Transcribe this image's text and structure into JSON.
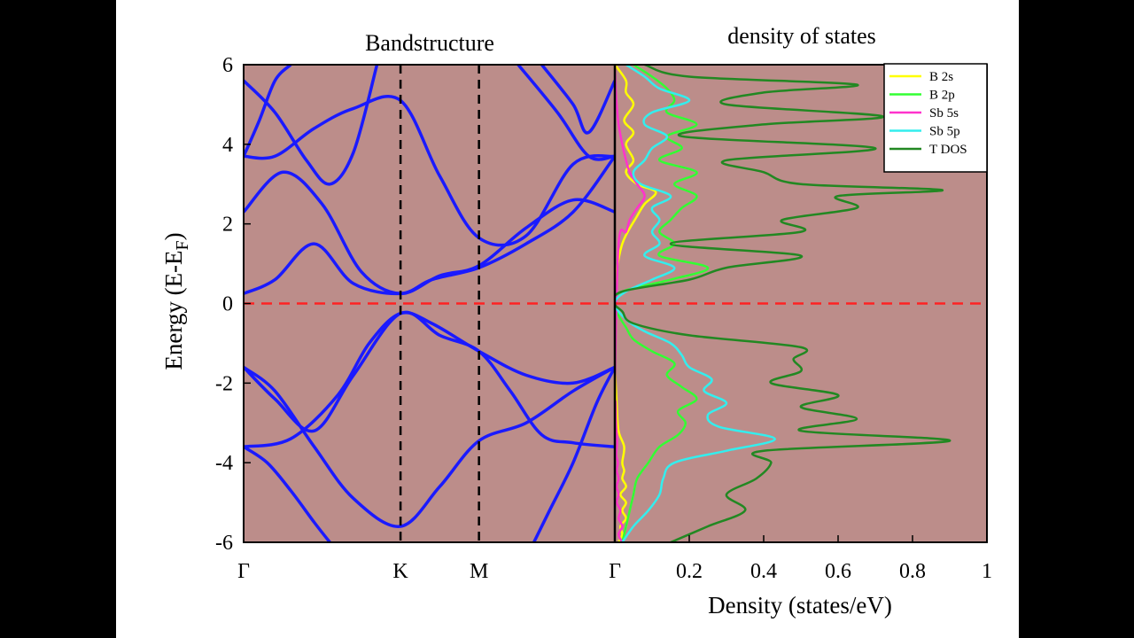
{
  "chart_data": [
    {
      "type": "line",
      "title": "Bandstructure",
      "ylabel": "Energy (E-E",
      "ylabel_sub": "F",
      "ylabel_close": ")",
      "ylim": [
        -6,
        6
      ],
      "yticks": [
        "6",
        "4",
        "2",
        "0",
        "-2",
        "-4",
        "-6"
      ],
      "ytick_values": [
        6,
        4,
        2,
        0,
        -2,
        -4,
        -6
      ],
      "kpoints": [
        {
          "label": "Γ",
          "x": 0
        },
        {
          "label": "K",
          "x": 1
        },
        {
          "label": "M",
          "x": 1.5
        },
        {
          "label": "Γ",
          "x": 2.366
        }
      ],
      "fermi_level": 0,
      "grid": false,
      "series": [
        {
          "x": [
            0,
            0.2,
            0.45,
            0.7,
            1,
            1.25,
            1.5,
            1.8,
            2.1,
            2.366
          ],
          "y": [
            -1.6,
            -2.2,
            -3.6,
            -4.9,
            -5.6,
            -4.6,
            -3.45,
            -3.0,
            -2.2,
            -1.6
          ]
        },
        {
          "x": [
            0,
            0.2,
            0.45,
            0.7,
            1,
            1.25,
            1.5,
            1.7,
            1.9,
            2.1,
            2.366
          ],
          "y": [
            -1.6,
            -2.4,
            -3.2,
            -1.8,
            -0.25,
            -0.8,
            -1.2,
            -2.2,
            -3.3,
            -3.5,
            -3.6
          ]
        },
        {
          "x": [
            0,
            0.3,
            0.6,
            0.8,
            1,
            1.2,
            1.5,
            1.8,
            2.1,
            2.366
          ],
          "y": [
            -3.6,
            -3.4,
            -2.3,
            -1.0,
            -0.25,
            -0.5,
            -1.2,
            -1.8,
            -2.0,
            -1.6
          ]
        },
        {
          "x": [
            0,
            0.15,
            0.3,
            0.45,
            0.55
          ],
          "y": [
            -3.6,
            -4.0,
            -4.7,
            -5.5,
            -6
          ]
        },
        {
          "x": [
            1.85,
            1.95,
            2.1,
            2.25,
            2.366
          ],
          "y": [
            -6,
            -5.2,
            -4.0,
            -2.5,
            -1.6
          ]
        },
        {
          "x": [
            0,
            0.2,
            0.45,
            0.7,
            1,
            1.2,
            1.5,
            1.8,
            2.1,
            2.366
          ],
          "y": [
            0.25,
            0.6,
            1.5,
            0.5,
            0.25,
            0.6,
            0.9,
            1.5,
            2.3,
            3.7
          ]
        },
        {
          "x": [
            0,
            0.25,
            0.5,
            0.75,
            1,
            1.25,
            1.5,
            1.8,
            2.1,
            2.366
          ],
          "y": [
            2.3,
            3.3,
            2.5,
            0.8,
            0.25,
            0.7,
            0.95,
            1.9,
            2.6,
            2.3
          ]
        },
        {
          "x": [
            0,
            0.2,
            0.45,
            0.7,
            1,
            1.25,
            1.5,
            1.8,
            2.1,
            2.366
          ],
          "y": [
            3.7,
            3.7,
            4.4,
            4.9,
            5.1,
            3.2,
            1.65,
            1.7,
            3.5,
            3.7
          ]
        },
        {
          "x": [
            0,
            0.2,
            0.4,
            0.55,
            0.7,
            0.85
          ],
          "y": [
            5.6,
            4.8,
            3.6,
            3.0,
            3.8,
            6
          ]
        },
        {
          "x": [
            0,
            0.1,
            0.2,
            0.3
          ],
          "y": [
            3.7,
            4.6,
            5.6,
            6
          ]
        },
        {
          "x": [
            1.9,
            2.1,
            2.2,
            2.366
          ],
          "y": [
            6,
            5.0,
            4.3,
            5.6
          ]
        },
        {
          "x": [
            1.75,
            2.0,
            2.2,
            2.366
          ],
          "y": [
            6,
            4.8,
            3.7,
            3.7
          ]
        }
      ]
    },
    {
      "type": "line",
      "title": "density of states",
      "xlabel": "Density (states/eV)",
      "xlim": [
        0,
        1
      ],
      "xticks": [
        "0.2",
        "0.4",
        "0.6",
        "0.8",
        "1"
      ],
      "xtick_values": [
        0.2,
        0.4,
        0.6,
        0.8,
        1
      ],
      "ylim": [
        -6,
        6
      ],
      "legend_position": "top-right",
      "grid": false,
      "series": [
        {
          "name": "B 2s",
          "color": "#ffff00",
          "energy": [
            -6,
            -5.8,
            -5.6,
            -5.4,
            -5.2,
            -5.0,
            -4.8,
            -4.6,
            -4.4,
            -4.2,
            -4.0,
            -3.6,
            -3.2,
            -2.5,
            -1.5,
            -0.5,
            0,
            0.5,
            1.5,
            2.2,
            2.5,
            2.8,
            3.0,
            3.3,
            3.6,
            4.0,
            4.3,
            4.6,
            5.0,
            5.3,
            5.6,
            6
          ],
          "density": [
            0.01,
            0.02,
            0.015,
            0.03,
            0.02,
            0.03,
            0.015,
            0.03,
            0.02,
            0.025,
            0.02,
            0.025,
            0.01,
            0.005,
            0.0,
            0.0,
            0.0,
            0.0,
            0.02,
            0.06,
            0.08,
            0.11,
            0.06,
            0.03,
            0.05,
            0.03,
            0.05,
            0.025,
            0.05,
            0.03,
            0.03,
            0.0
          ]
        },
        {
          "name": "B 2p",
          "color": "#33ff33",
          "energy": [
            -6,
            -5.6,
            -5.2,
            -4.8,
            -4.4,
            -4.0,
            -3.6,
            -3.3,
            -3.0,
            -2.7,
            -2.4,
            -2.1,
            -1.8,
            -1.5,
            -1.2,
            -0.9,
            -0.6,
            -0.3,
            0,
            0.3,
            0.6,
            0.9,
            1.2,
            1.5,
            1.8,
            2.1,
            2.4,
            2.7,
            3.0,
            3.3,
            3.6,
            3.9,
            4.2,
            4.5,
            4.8,
            5.1,
            5.4,
            5.7,
            6
          ],
          "density": [
            0.02,
            0.03,
            0.04,
            0.05,
            0.06,
            0.09,
            0.12,
            0.17,
            0.19,
            0.17,
            0.22,
            0.18,
            0.14,
            0.16,
            0.1,
            0.05,
            0.03,
            0.01,
            0.0,
            0.02,
            0.15,
            0.25,
            0.12,
            0.16,
            0.12,
            0.15,
            0.18,
            0.22,
            0.16,
            0.22,
            0.12,
            0.18,
            0.14,
            0.22,
            0.14,
            0.16,
            0.14,
            0.1,
            0.05
          ]
        },
        {
          "name": "Sb 5s",
          "color": "#ff33cc",
          "energy": [
            -6,
            -5.8,
            -5.6,
            -5.4,
            -5.2,
            -5.0,
            -4.8,
            -4.6,
            -4.4,
            -4.2,
            -4.0,
            -3.8,
            -3.5,
            -3.0,
            -2.5,
            -2.0,
            1.5,
            1.8,
            2.1,
            2.4,
            2.7,
            3.0,
            3.3,
            3.6,
            4.0,
            4.5,
            5.0,
            5.5,
            6
          ],
          "density": [
            0.02,
            0.01,
            0.02,
            0.01,
            0.015,
            0.005,
            0.01,
            0.005,
            0.01,
            0.005,
            0.008,
            0.004,
            0.006,
            0.003,
            0.002,
            0.0,
            0.01,
            0.03,
            0.04,
            0.06,
            0.08,
            0.06,
            0.04,
            0.03,
            0.02,
            0.01,
            0.005,
            0.002,
            0.0
          ]
        },
        {
          "name": "Sb 5p",
          "color": "#33eeee",
          "energy": [
            -6,
            -5.6,
            -5.2,
            -4.8,
            -4.4,
            -4.0,
            -3.7,
            -3.4,
            -3.1,
            -2.8,
            -2.5,
            -2.2,
            -1.9,
            -1.6,
            -1.3,
            -1.0,
            -0.7,
            -0.4,
            0,
            0.3,
            0.6,
            0.9,
            1.2,
            1.5,
            1.8,
            2.1,
            2.4,
            2.7,
            3.0,
            3.3,
            3.6,
            3.9,
            4.2,
            4.5,
            4.8,
            5.1,
            5.4,
            5.7,
            6
          ],
          "density": [
            0.02,
            0.05,
            0.09,
            0.12,
            0.13,
            0.16,
            0.3,
            0.43,
            0.28,
            0.25,
            0.3,
            0.24,
            0.26,
            0.2,
            0.18,
            0.15,
            0.08,
            0.03,
            0.0,
            0.03,
            0.1,
            0.16,
            0.08,
            0.12,
            0.1,
            0.12,
            0.1,
            0.15,
            0.07,
            0.05,
            0.08,
            0.1,
            0.14,
            0.08,
            0.1,
            0.2,
            0.12,
            0.08,
            0.03
          ]
        },
        {
          "name": "T DOS",
          "color": "#228822",
          "energy": [
            -6,
            -5.6,
            -5.2,
            -4.8,
            -4.4,
            -4.0,
            -3.7,
            -3.45,
            -3.2,
            -2.9,
            -2.6,
            -2.3,
            -2.0,
            -1.7,
            -1.4,
            -1.1,
            -0.8,
            -0.5,
            -0.2,
            0,
            0.3,
            0.6,
            0.9,
            1.2,
            1.5,
            1.8,
            2.1,
            2.4,
            2.7,
            2.85,
            3.0,
            3.3,
            3.6,
            3.9,
            4.2,
            4.5,
            4.7,
            5.0,
            5.3,
            5.5,
            5.7,
            6
          ],
          "density": [
            0.15,
            0.25,
            0.35,
            0.3,
            0.38,
            0.42,
            0.4,
            0.9,
            0.5,
            0.65,
            0.5,
            0.6,
            0.42,
            0.5,
            0.48,
            0.5,
            0.2,
            0.05,
            0.02,
            0.0,
            0.02,
            0.2,
            0.3,
            0.5,
            0.15,
            0.5,
            0.45,
            0.65,
            0.6,
            0.88,
            0.5,
            0.4,
            0.3,
            0.7,
            0.18,
            0.4,
            0.72,
            0.3,
            0.4,
            0.65,
            0.2,
            0.08
          ]
        }
      ]
    }
  ],
  "colors": {
    "plot_background": "#bc8d8a",
    "band_line": "#1a1aff",
    "fermi_line": "#ff2222",
    "kpath_divider": "#000000"
  }
}
